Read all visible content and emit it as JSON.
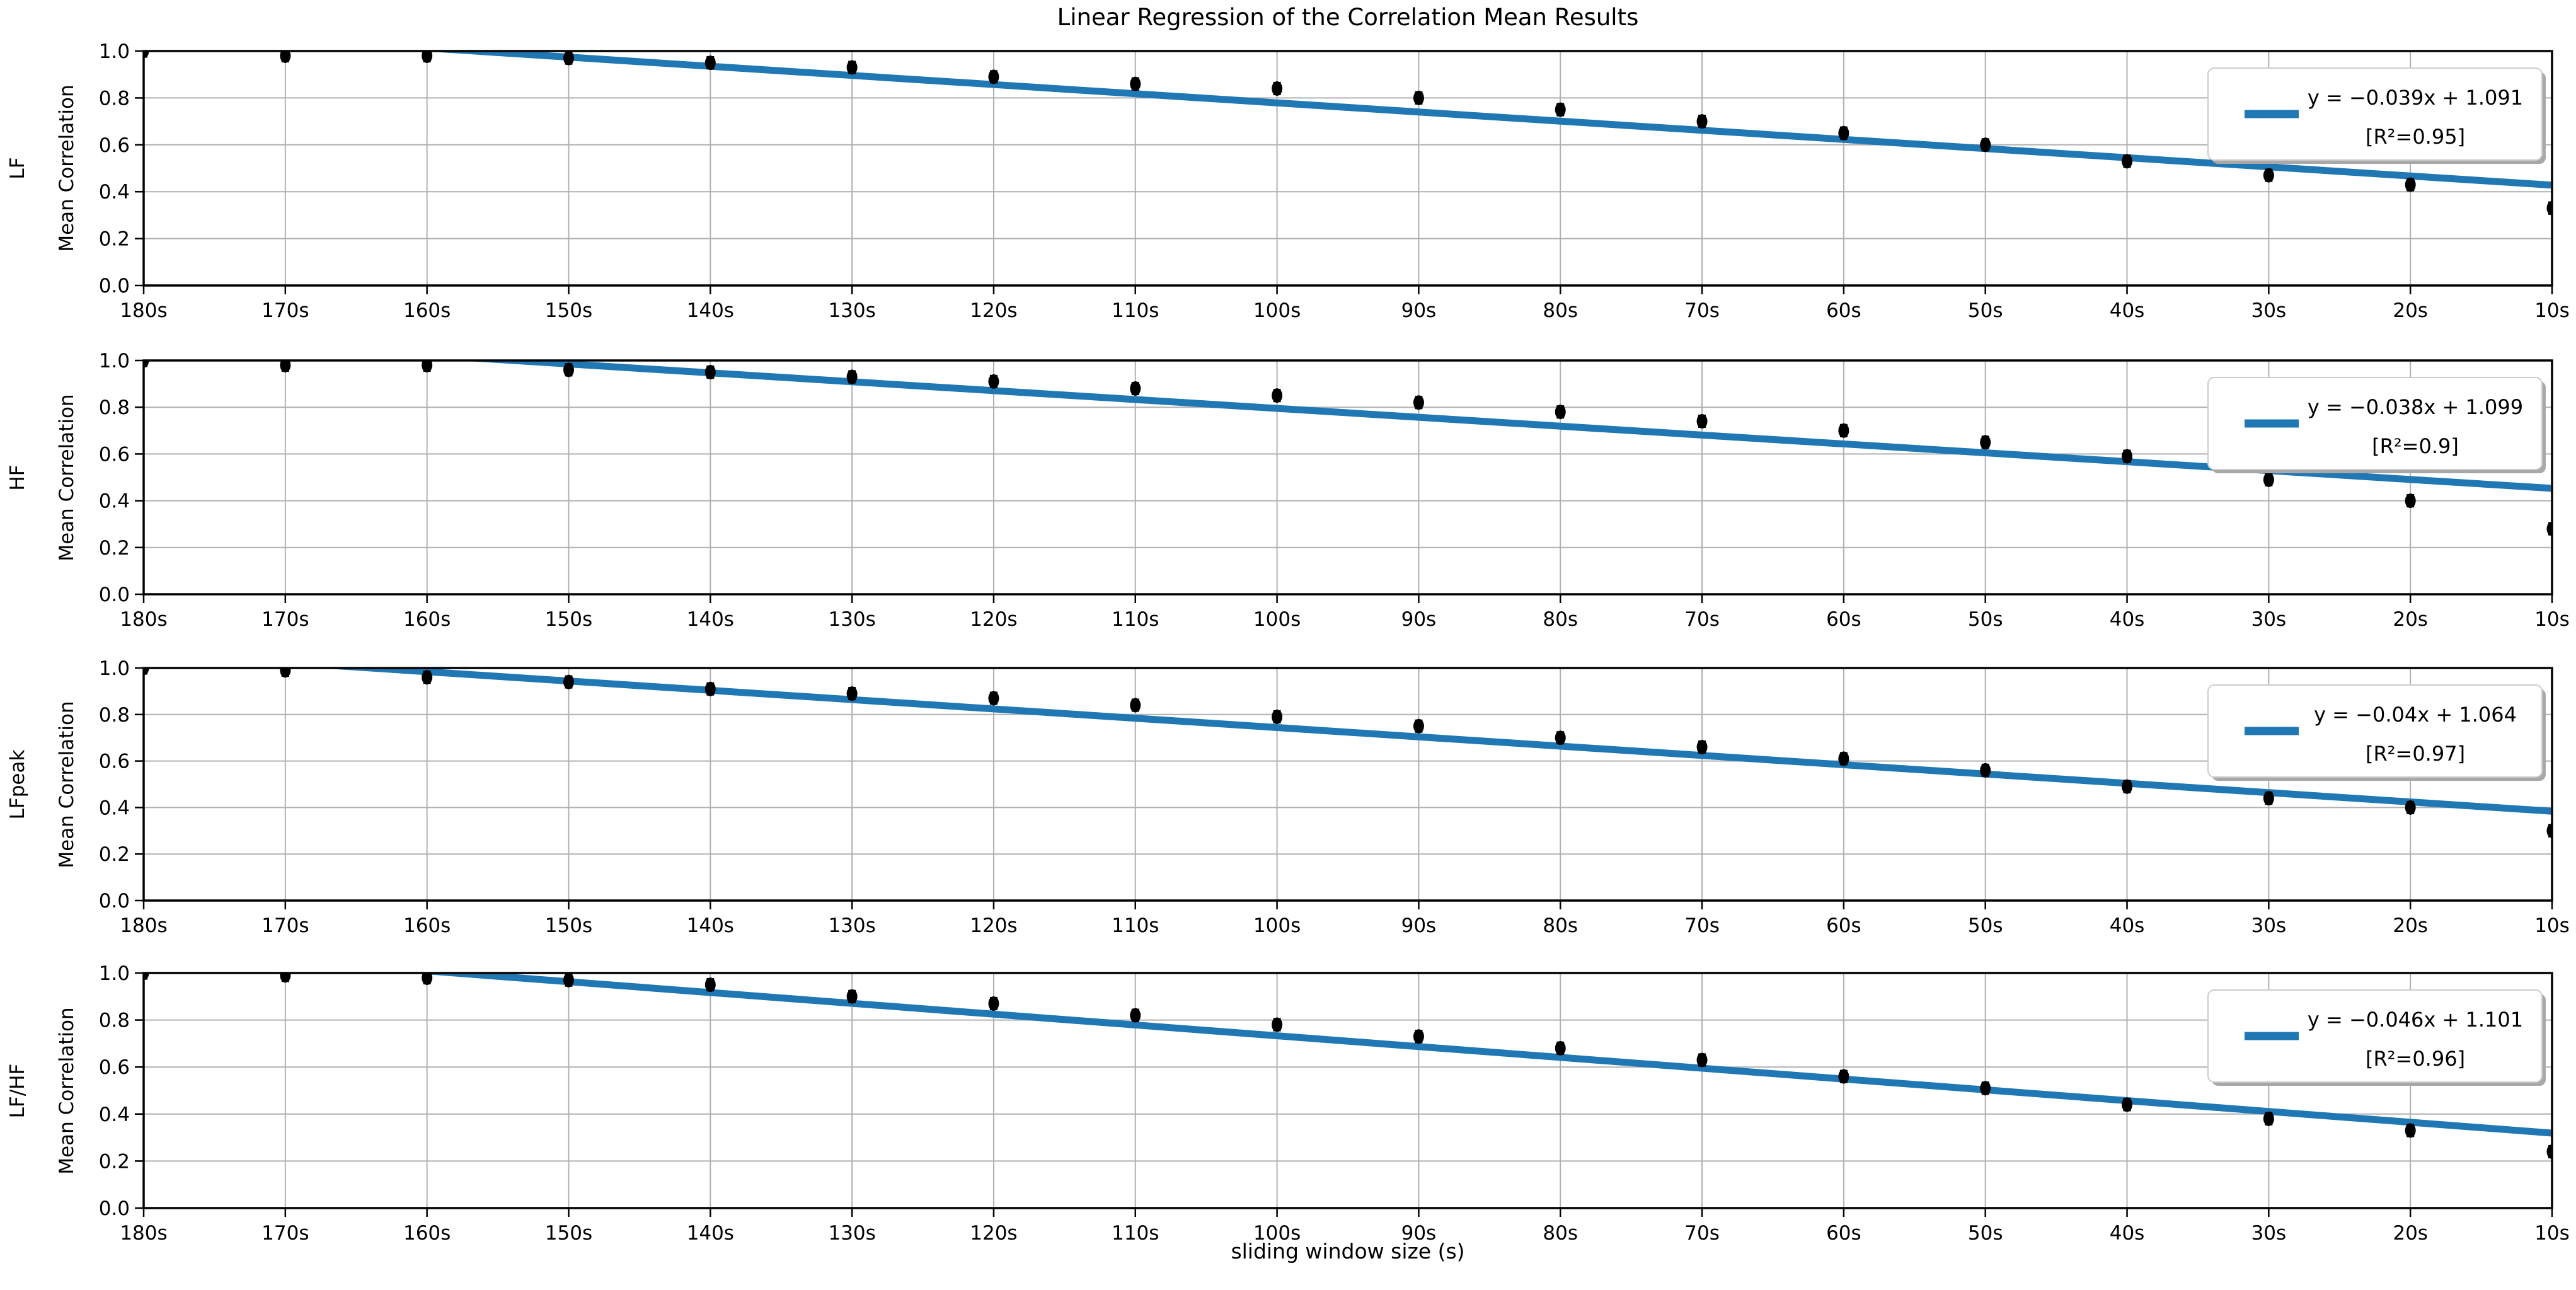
{
  "title": "Linear Regression of the Correlation Mean Results",
  "xlabel": "sliding window size (s)",
  "colors": {
    "regression_line": "#1f77b4",
    "marker": "#000000",
    "grid": "#b0b0b0",
    "axes": "#000000",
    "legend_edge": "#cccccc",
    "legend_shadow": "#a8a8a8"
  },
  "y_tick_labels": [
    "1.0",
    "0.8",
    "0.6",
    "0.4",
    "0.2",
    "0.0"
  ],
  "x_tick_labels": [
    "180s",
    "170s",
    "160s",
    "150s",
    "140s",
    "130s",
    "120s",
    "110s",
    "100s",
    "90s",
    "80s",
    "70s",
    "60s",
    "50s",
    "40s",
    "30s",
    "20s",
    "10s"
  ],
  "chart_data": [
    {
      "type": "scatter",
      "row_label": "LF",
      "ylabel": "Mean Correlation",
      "categories": [
        "180s",
        "170s",
        "160s",
        "150s",
        "140s",
        "130s",
        "120s",
        "110s",
        "100s",
        "90s",
        "80s",
        "70s",
        "60s",
        "50s",
        "40s",
        "30s",
        "20s",
        "10s"
      ],
      "values": [
        1.0,
        0.98,
        0.98,
        0.97,
        0.95,
        0.93,
        0.89,
        0.86,
        0.84,
        0.8,
        0.75,
        0.7,
        0.65,
        0.6,
        0.53,
        0.47,
        0.43,
        0.33
      ],
      "regression": {
        "slope": -0.039,
        "intercept": 1.091,
        "r_squared": 0.95
      },
      "legend": {
        "equation": "y = −0.039x + 1.091",
        "r_squared": "[R²=0.95]"
      },
      "ylim": [
        0.0,
        1.0
      ],
      "grid": true,
      "legend_position": "upper right"
    },
    {
      "type": "scatter",
      "row_label": "HF",
      "ylabel": "Mean Correlation",
      "categories": [
        "180s",
        "170s",
        "160s",
        "150s",
        "140s",
        "130s",
        "120s",
        "110s",
        "100s",
        "90s",
        "80s",
        "70s",
        "60s",
        "50s",
        "40s",
        "30s",
        "20s",
        "10s"
      ],
      "values": [
        1.0,
        0.98,
        0.98,
        0.96,
        0.95,
        0.93,
        0.91,
        0.88,
        0.85,
        0.82,
        0.78,
        0.74,
        0.7,
        0.65,
        0.59,
        0.49,
        0.4,
        0.28
      ],
      "regression": {
        "slope": -0.038,
        "intercept": 1.099,
        "r_squared": 0.9
      },
      "legend": {
        "equation": "y = −0.038x + 1.099",
        "r_squared": "[R²=0.9]"
      },
      "ylim": [
        0.0,
        1.0
      ],
      "grid": true,
      "legend_position": "upper right"
    },
    {
      "type": "scatter",
      "row_label": "LFpeak",
      "ylabel": "Mean Correlation",
      "categories": [
        "180s",
        "170s",
        "160s",
        "150s",
        "140s",
        "130s",
        "120s",
        "110s",
        "100s",
        "90s",
        "80s",
        "70s",
        "60s",
        "50s",
        "40s",
        "30s",
        "20s",
        "10s"
      ],
      "values": [
        1.0,
        0.99,
        0.96,
        0.94,
        0.91,
        0.89,
        0.87,
        0.84,
        0.79,
        0.75,
        0.7,
        0.66,
        0.61,
        0.56,
        0.49,
        0.44,
        0.4,
        0.3
      ],
      "regression": {
        "slope": -0.04,
        "intercept": 1.064,
        "r_squared": 0.97
      },
      "legend": {
        "equation": "y = −0.04x + 1.064",
        "r_squared": "[R²=0.97]"
      },
      "ylim": [
        0.0,
        1.0
      ],
      "grid": true,
      "legend_position": "upper right"
    },
    {
      "type": "scatter",
      "row_label": "LF/HF",
      "ylabel": "Mean Correlation",
      "categories": [
        "180s",
        "170s",
        "160s",
        "150s",
        "140s",
        "130s",
        "120s",
        "110s",
        "100s",
        "90s",
        "80s",
        "70s",
        "60s",
        "50s",
        "40s",
        "30s",
        "20s",
        "10s"
      ],
      "values": [
        1.0,
        0.99,
        0.98,
        0.97,
        0.95,
        0.9,
        0.87,
        0.82,
        0.78,
        0.73,
        0.68,
        0.63,
        0.56,
        0.51,
        0.44,
        0.38,
        0.33,
        0.24
      ],
      "regression": {
        "slope": -0.046,
        "intercept": 1.101,
        "r_squared": 0.96
      },
      "legend": {
        "equation": "y = −0.046x + 1.101",
        "r_squared": "[R²=0.96]"
      },
      "ylim": [
        0.0,
        1.0
      ],
      "grid": true,
      "legend_position": "upper right"
    }
  ]
}
